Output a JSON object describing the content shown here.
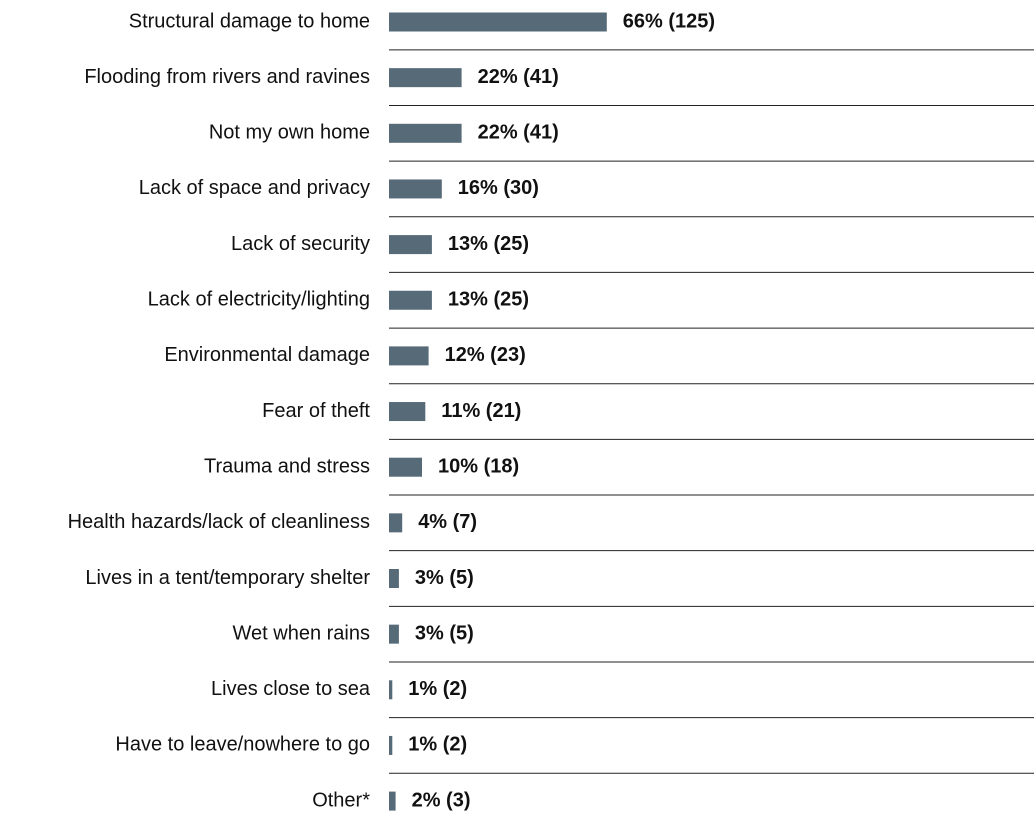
{
  "chart_data": {
    "type": "barh",
    "categories": [
      "Structural damage to home",
      "Flooding from rivers and ravines",
      "Not my own home",
      "Lack of space and privacy",
      "Lack of security",
      "Lack of electricity/lighting",
      "Environmental damage",
      "Fear of theft",
      "Trauma and stress",
      "Health hazards/lack of cleanliness",
      "Lives in a tent/temporary shelter",
      "Wet when rains",
      "Lives close to sea",
      "Have to leave/nowhere to go",
      "Other*"
    ],
    "values": [
      66,
      22,
      22,
      16,
      13,
      13,
      12,
      11,
      10,
      4,
      3,
      3,
      1,
      1,
      2
    ],
    "value_labels": [
      "66% (125)",
      "22% (41)",
      "22% (41)",
      "16% (30)",
      "13% (25)",
      "13% (25)",
      "12% (23)",
      "11% (21)",
      "10% (18)",
      "4% (7)",
      "3% (5)",
      "3% (5)",
      "1% (2)",
      "1% (2)",
      "2% (3)"
    ],
    "color": "#566a78"
  }
}
